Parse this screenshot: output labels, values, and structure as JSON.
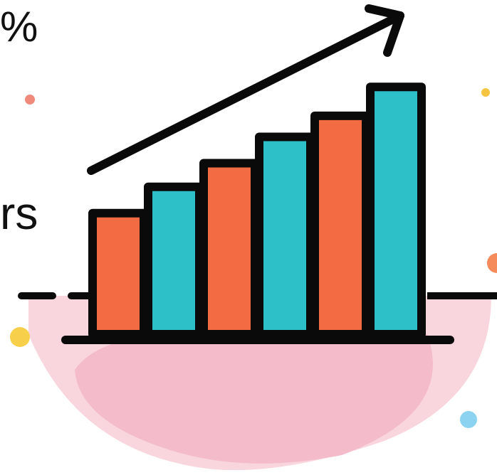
{
  "fragments": {
    "top": "%",
    "middle": "rs"
  },
  "growth_bars": {
    "levels": [
      0.46,
      0.56,
      0.65,
      0.75,
      0.83,
      0.94
    ],
    "colors": [
      "#f26b43",
      "#2ec0c9",
      "#f26b43",
      "#2ec0c9",
      "#f26b43",
      "#2ec0c9"
    ]
  },
  "colors": {
    "outline": "#0a0a0a",
    "bowl": "#f9d6dd",
    "bowl_shade": "#f4bccb",
    "dot_coral": "#f08a7a",
    "dot_yellow": "#f7cf4a",
    "dot_orange": "#f58a5a",
    "dot_blue": "#8cd3f2",
    "dot_small_yellow": "#f5c542"
  },
  "icons": [
    "trend-arrow-icon",
    "bar-chart-icon",
    "bowl-shape",
    "confetti-dot"
  ]
}
